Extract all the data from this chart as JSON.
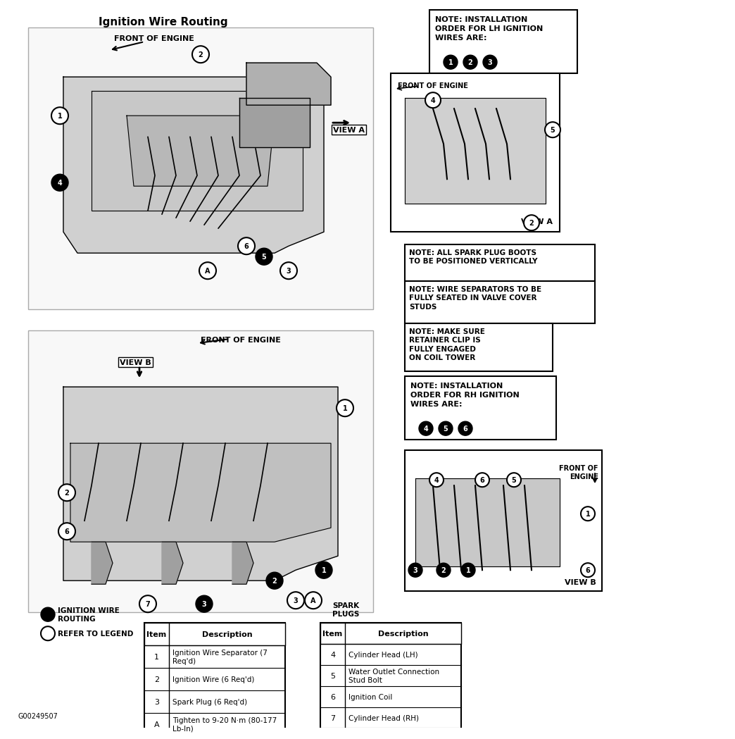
{
  "title": "Ignition Wire Routing",
  "bg_color": "#ffffff",
  "title_font_size": 11,
  "note_lh_title": "NOTE: INSTALLATION\nORDER FOR LH IGNITION\nWIRES ARE:",
  "note_sparks_1": "NOTE: ALL SPARK PLUG BOOTS\nTO BE POSITIONED VERTICALLY",
  "note_sparks_2": "NOTE: WIRE SEPARATORS TO BE\nFULLY SEATED IN VALVE COVER\nSTUDS",
  "note_sparks_3": "NOTE: MAKE SURE\nRETAINER CLIP IS\nFULLY ENGAGED\nON COIL TOWER",
  "note_rh_title": "NOTE: INSTALLATION\nORDER FOR RH IGNITION\nWIRES ARE:",
  "front_of_engine_label": "FRONT OF ENGINE",
  "front_of_engine_label2": "FRONT OF\nENGINE",
  "view_a_label": "VIEW A",
  "view_b_label": "VIEW B",
  "legend_filled_label": "IGNITION WIRE\nROUTING",
  "legend_open_label": "REFER TO LEGEND",
  "spark_plugs_label": "SPARK\nPLUGS",
  "table1_headers": [
    "Item",
    "Description"
  ],
  "table1_rows": [
    [
      "1",
      "Ignition Wire Separator (7\nReq'd)"
    ],
    [
      "2",
      "Ignition Wire (6 Req'd)"
    ],
    [
      "3",
      "Spark Plug (6 Req'd)"
    ],
    [
      "A",
      "Tighten to 9-20 N·m (80-177\nLb-In)"
    ]
  ],
  "table2_headers": [
    "Item",
    "Description"
  ],
  "table2_rows": [
    [
      "4",
      "Cylinder Head (LH)"
    ],
    [
      "5",
      "Water Outlet Connection\nStud Bolt"
    ],
    [
      "6",
      "Ignition Coil"
    ],
    [
      "7",
      "Cylinder Head (RH)"
    ]
  ],
  "footer_code": "G00249507"
}
